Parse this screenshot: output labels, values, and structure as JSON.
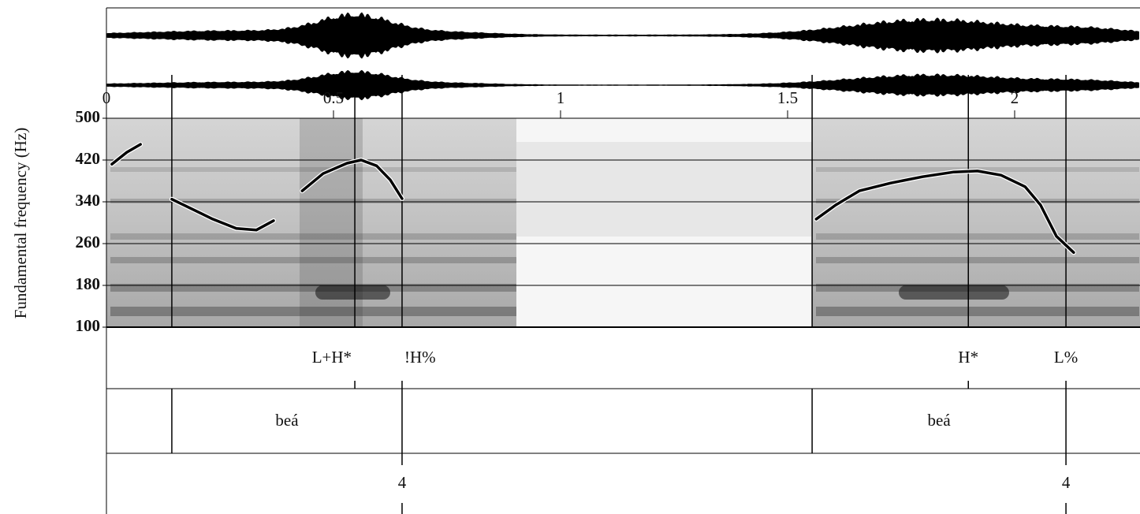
{
  "chart_data": {
    "type": "line",
    "ylabel": "Fundamental frequency (Hz)",
    "xlim": [
      0,
      2.276
    ],
    "xticks": [
      0,
      0.5,
      1,
      1.5,
      2
    ],
    "ylim": [
      100,
      500
    ],
    "yticks": [
      100,
      180,
      260,
      340,
      420,
      500
    ],
    "grid": true,
    "x": [
      0.012,
      0.045,
      0.075,
      null,
      0.144,
      0.182,
      0.234,
      0.286,
      0.33,
      0.368,
      null,
      0.431,
      0.477,
      0.53,
      0.561,
      0.595,
      0.625,
      0.651,
      null,
      1.563,
      1.606,
      1.658,
      1.727,
      1.797,
      1.866,
      1.918,
      1.97,
      2.023,
      2.057,
      2.092,
      2.13
    ],
    "series": [
      {
        "color": "#000000",
        "values": [
          412,
          435,
          450,
          null,
          345,
          329,
          307,
          289,
          286,
          304,
          null,
          361,
          394,
          414,
          420,
          409,
          382,
          346,
          null,
          307,
          334,
          361,
          376,
          388,
          397,
          399,
          391,
          369,
          334,
          274,
          243
        ]
      }
    ],
    "tones": {
      "times": [
        0.547,
        0.651,
        1.898,
        2.113
      ],
      "labels": [
        "L+H*",
        "!H%",
        "H*",
        "L%"
      ]
    },
    "words": {
      "starts": [
        0.144,
        1.554
      ],
      "ends": [
        0.651,
        2.113
      ],
      "labels": [
        "beá",
        "beá"
      ]
    },
    "breaks": {
      "times": [
        0.651,
        2.113
      ],
      "labels": [
        "4",
        "4"
      ]
    }
  }
}
